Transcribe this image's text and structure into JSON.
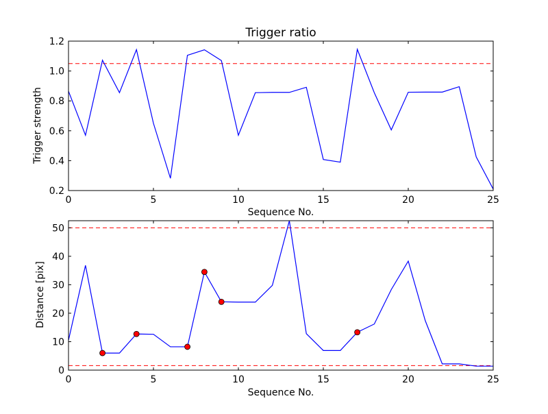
{
  "chart_data": [
    {
      "type": "line",
      "title": "Trigger ratio",
      "xlabel": "Sequence No.",
      "ylabel": "Trigger strength",
      "xlim": [
        0,
        25
      ],
      "ylim": [
        0.2,
        1.2
      ],
      "xticks": [
        "0",
        "5",
        "10",
        "15",
        "20",
        "25"
      ],
      "yticks": [
        "0.2",
        "0.4",
        "0.6",
        "0.8",
        "1.0",
        "1.2"
      ],
      "grid": false,
      "x": [
        0,
        1,
        2,
        3,
        4,
        5,
        6,
        7,
        8,
        9,
        10,
        11,
        12,
        13,
        14,
        15,
        16,
        17,
        18,
        19,
        20,
        21,
        22,
        23,
        24,
        25
      ],
      "series": [
        {
          "color": "#0000ff",
          "values": [
            0.865,
            0.57,
            1.072,
            0.855,
            1.143,
            0.65,
            0.282,
            1.105,
            1.142,
            1.07,
            0.57,
            0.855,
            0.857,
            0.857,
            0.891,
            0.408,
            0.39,
            1.145,
            0.855,
            0.606,
            0.858,
            0.859,
            0.859,
            0.895,
            0.425,
            0.21
          ]
        }
      ],
      "hlines": [
        {
          "y": 1.05,
          "color": "#ff0000",
          "style": "dashed"
        }
      ]
    },
    {
      "type": "line",
      "title": "",
      "xlabel": "Sequence No.",
      "ylabel": "Distance [pix]",
      "xlim": [
        0,
        25
      ],
      "ylim": [
        0,
        52.5
      ],
      "xticks": [
        "0",
        "5",
        "10",
        "15",
        "20",
        "25"
      ],
      "yticks": [
        "0",
        "10",
        "20",
        "30",
        "40",
        "50"
      ],
      "grid": false,
      "x": [
        0,
        1,
        2,
        3,
        4,
        5,
        6,
        7,
        8,
        9,
        10,
        11,
        12,
        13,
        14,
        15,
        16,
        17,
        18,
        19,
        20,
        21,
        22,
        23,
        24,
        25
      ],
      "series": [
        {
          "color": "#0000ff",
          "values": [
            10.5,
            36.8,
            6.0,
            6.0,
            12.7,
            12.6,
            8.2,
            8.2,
            34.5,
            24.0,
            23.9,
            23.9,
            29.8,
            52.5,
            12.8,
            6.9,
            6.9,
            13.3,
            16.2,
            28.3,
            38.3,
            17.4,
            2.2,
            2.2,
            1.4,
            1.4
          ]
        }
      ],
      "markers": {
        "color": "#ff0000",
        "x": [
          2,
          4,
          7,
          8,
          9,
          17
        ],
        "y": [
          6.0,
          12.7,
          8.2,
          34.5,
          24.0,
          13.3
        ]
      },
      "hlines": [
        {
          "y": 50,
          "color": "#ff0000",
          "style": "dashed"
        },
        {
          "y": 1.6,
          "color": "#ff0000",
          "style": "dashed"
        }
      ]
    }
  ]
}
